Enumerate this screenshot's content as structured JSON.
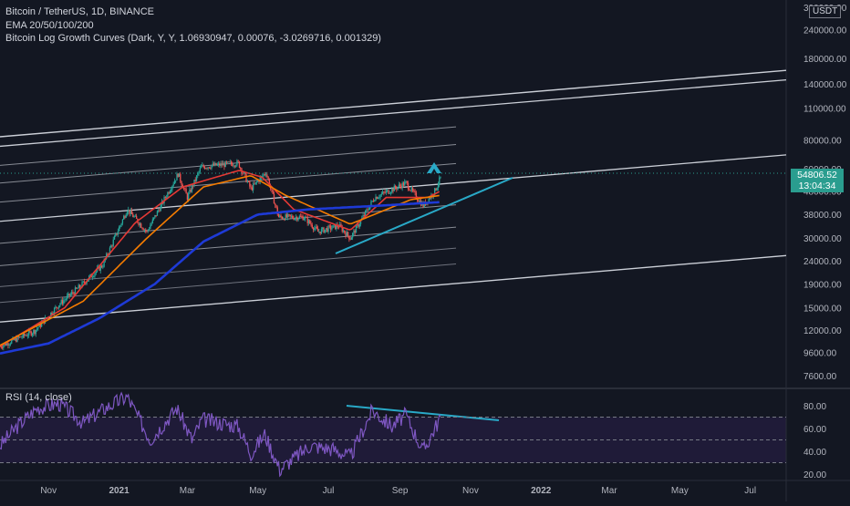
{
  "legend": {
    "symbol_line": "Bitcoin / TetherUS, 1D, BINANCE",
    "ema_line": "EMA 20/50/100/200",
    "growth_line": "Bitcoin Log Growth Curves (Dark, Y, Y, 1.06930947, 0.00076, -3.0269716, 0.001329)"
  },
  "rsi_legend": "RSI (14, close)",
  "currency_badge": "USDT",
  "last_price": "54806.52",
  "countdown": "13:04:34",
  "colors": {
    "background": "#131722",
    "candle_up": "#26a69a",
    "candle_down": "#ef5350",
    "ema_red": "#e53935",
    "ema_orange": "#f57c00",
    "ema_blue": "#1e3ad6",
    "trendline": "#29a9c7",
    "rsi_line": "#7e57c2"
  },
  "chart_data": [
    {
      "type": "candlestick",
      "title": "Bitcoin / TetherUS, 1D, BINANCE",
      "scale": "log",
      "y_ticks": [
        7600,
        9600,
        12000,
        15000,
        19000,
        24000,
        30000,
        38000,
        48000,
        60000,
        80000,
        110000,
        140000,
        180000,
        240000,
        300000
      ],
      "y_tick_labels": [
        "7600.00",
        "9600.00",
        "12000.00",
        "15000.00",
        "19000.00",
        "24000.00",
        "30000.00",
        "38000.00",
        "48000.00",
        "60000.00",
        "80000.00",
        "110000.00",
        "140000.00",
        "180000.00",
        "240000.00",
        "300000.00"
      ],
      "x_tick_labels": [
        "Nov",
        "2021",
        "Mar",
        "May",
        "Jul",
        "Sep",
        "Nov",
        "2022",
        "Mar",
        "May",
        "Jul"
      ],
      "x_tick_dates": [
        "2020-11-01",
        "2021-01-01",
        "2021-03-01",
        "2021-05-01",
        "2021-07-01",
        "2021-09-01",
        "2021-11-01",
        "2022-01-01",
        "2022-03-01",
        "2022-05-01",
        "2022-07-01"
      ],
      "price_anchors": [
        {
          "date": "2020-09-20",
          "close": 10200
        },
        {
          "date": "2020-10-20",
          "close": 11900
        },
        {
          "date": "2020-11-10",
          "close": 15500
        },
        {
          "date": "2020-11-28",
          "close": 18500
        },
        {
          "date": "2020-12-18",
          "close": 23000
        },
        {
          "date": "2021-01-08",
          "close": 40000
        },
        {
          "date": "2021-01-25",
          "close": 32000
        },
        {
          "date": "2021-02-21",
          "close": 57000
        },
        {
          "date": "2021-03-01",
          "close": 45000
        },
        {
          "date": "2021-03-13",
          "close": 61000
        },
        {
          "date": "2021-04-14",
          "close": 63500
        },
        {
          "date": "2021-04-25",
          "close": 49000
        },
        {
          "date": "2021-05-08",
          "close": 58000
        },
        {
          "date": "2021-05-19",
          "close": 37000
        },
        {
          "date": "2021-06-10",
          "close": 37000
        },
        {
          "date": "2021-06-22",
          "close": 32000
        },
        {
          "date": "2021-07-10",
          "close": 34000
        },
        {
          "date": "2021-07-20",
          "close": 30000
        },
        {
          "date": "2021-08-10",
          "close": 45000
        },
        {
          "date": "2021-09-06",
          "close": 52000
        },
        {
          "date": "2021-09-21",
          "close": 41500
        },
        {
          "date": "2021-10-01",
          "close": 48000
        },
        {
          "date": "2021-10-06",
          "close": 54806.52
        }
      ],
      "series": [
        {
          "name": "EMA 20",
          "values": [
            {
              "date": "2020-09-20",
              "value": 10200
            },
            {
              "date": "2020-11-15",
              "value": 15000
            },
            {
              "date": "2021-01-15",
              "value": 35000
            },
            {
              "date": "2021-02-25",
              "value": 50000
            },
            {
              "date": "2021-04-15",
              "value": 59000
            },
            {
              "date": "2021-05-05",
              "value": 55000
            },
            {
              "date": "2021-06-01",
              "value": 40000
            },
            {
              "date": "2021-07-20",
              "value": 32500
            },
            {
              "date": "2021-08-20",
              "value": 45000
            },
            {
              "date": "2021-09-25",
              "value": 45000
            },
            {
              "date": "2021-10-06",
              "value": 48000
            }
          ]
        },
        {
          "name": "EMA 50",
          "values": [
            {
              "date": "2020-09-20",
              "value": 10300
            },
            {
              "date": "2020-12-01",
              "value": 16000
            },
            {
              "date": "2021-01-25",
              "value": 30000
            },
            {
              "date": "2021-03-15",
              "value": 50000
            },
            {
              "date": "2021-04-25",
              "value": 56000
            },
            {
              "date": "2021-05-25",
              "value": 46000
            },
            {
              "date": "2021-07-20",
              "value": 34500
            },
            {
              "date": "2021-09-10",
              "value": 44000
            },
            {
              "date": "2021-10-06",
              "value": 46000
            }
          ]
        },
        {
          "name": "EMA 200",
          "values": [
            {
              "date": "2020-09-20",
              "value": 9500
            },
            {
              "date": "2020-11-01",
              "value": 10500
            },
            {
              "date": "2020-12-15",
              "value": 13500
            },
            {
              "date": "2021-02-01",
              "value": 19000
            },
            {
              "date": "2021-03-15",
              "value": 29000
            },
            {
              "date": "2021-05-01",
              "value": 38000
            },
            {
              "date": "2021-06-15",
              "value": 40000
            },
            {
              "date": "2021-08-15",
              "value": 41500
            },
            {
              "date": "2021-10-06",
              "value": 43000
            }
          ]
        }
      ]
    },
    {
      "type": "line",
      "title": "RSI (14, close)",
      "y_ticks": [
        20,
        40,
        60,
        80
      ],
      "y_tick_labels": [
        "20.00",
        "40.00",
        "60.00",
        "80.00"
      ],
      "bands": [
        30,
        50,
        70
      ],
      "series": [
        {
          "name": "RSI",
          "values": [
            {
              "date": "2020-09-20",
              "value": 45
            },
            {
              "date": "2020-10-05",
              "value": 62
            },
            {
              "date": "2020-10-22",
              "value": 78
            },
            {
              "date": "2020-11-10",
              "value": 82
            },
            {
              "date": "2020-12-01",
              "value": 65
            },
            {
              "date": "2020-12-20",
              "value": 78
            },
            {
              "date": "2021-01-08",
              "value": 88
            },
            {
              "date": "2021-01-28",
              "value": 50
            },
            {
              "date": "2021-02-20",
              "value": 78
            },
            {
              "date": "2021-03-05",
              "value": 50
            },
            {
              "date": "2021-03-14",
              "value": 68
            },
            {
              "date": "2021-04-14",
              "value": 62
            },
            {
              "date": "2021-04-25",
              "value": 38
            },
            {
              "date": "2021-05-07",
              "value": 55
            },
            {
              "date": "2021-05-20",
              "value": 24
            },
            {
              "date": "2021-06-15",
              "value": 45
            },
            {
              "date": "2021-07-05",
              "value": 42
            },
            {
              "date": "2021-07-20",
              "value": 35
            },
            {
              "date": "2021-08-08",
              "value": 76
            },
            {
              "date": "2021-08-25",
              "value": 62
            },
            {
              "date": "2021-09-06",
              "value": 72
            },
            {
              "date": "2021-09-21",
              "value": 40
            },
            {
              "date": "2021-10-06",
              "value": 70
            }
          ]
        }
      ]
    }
  ]
}
